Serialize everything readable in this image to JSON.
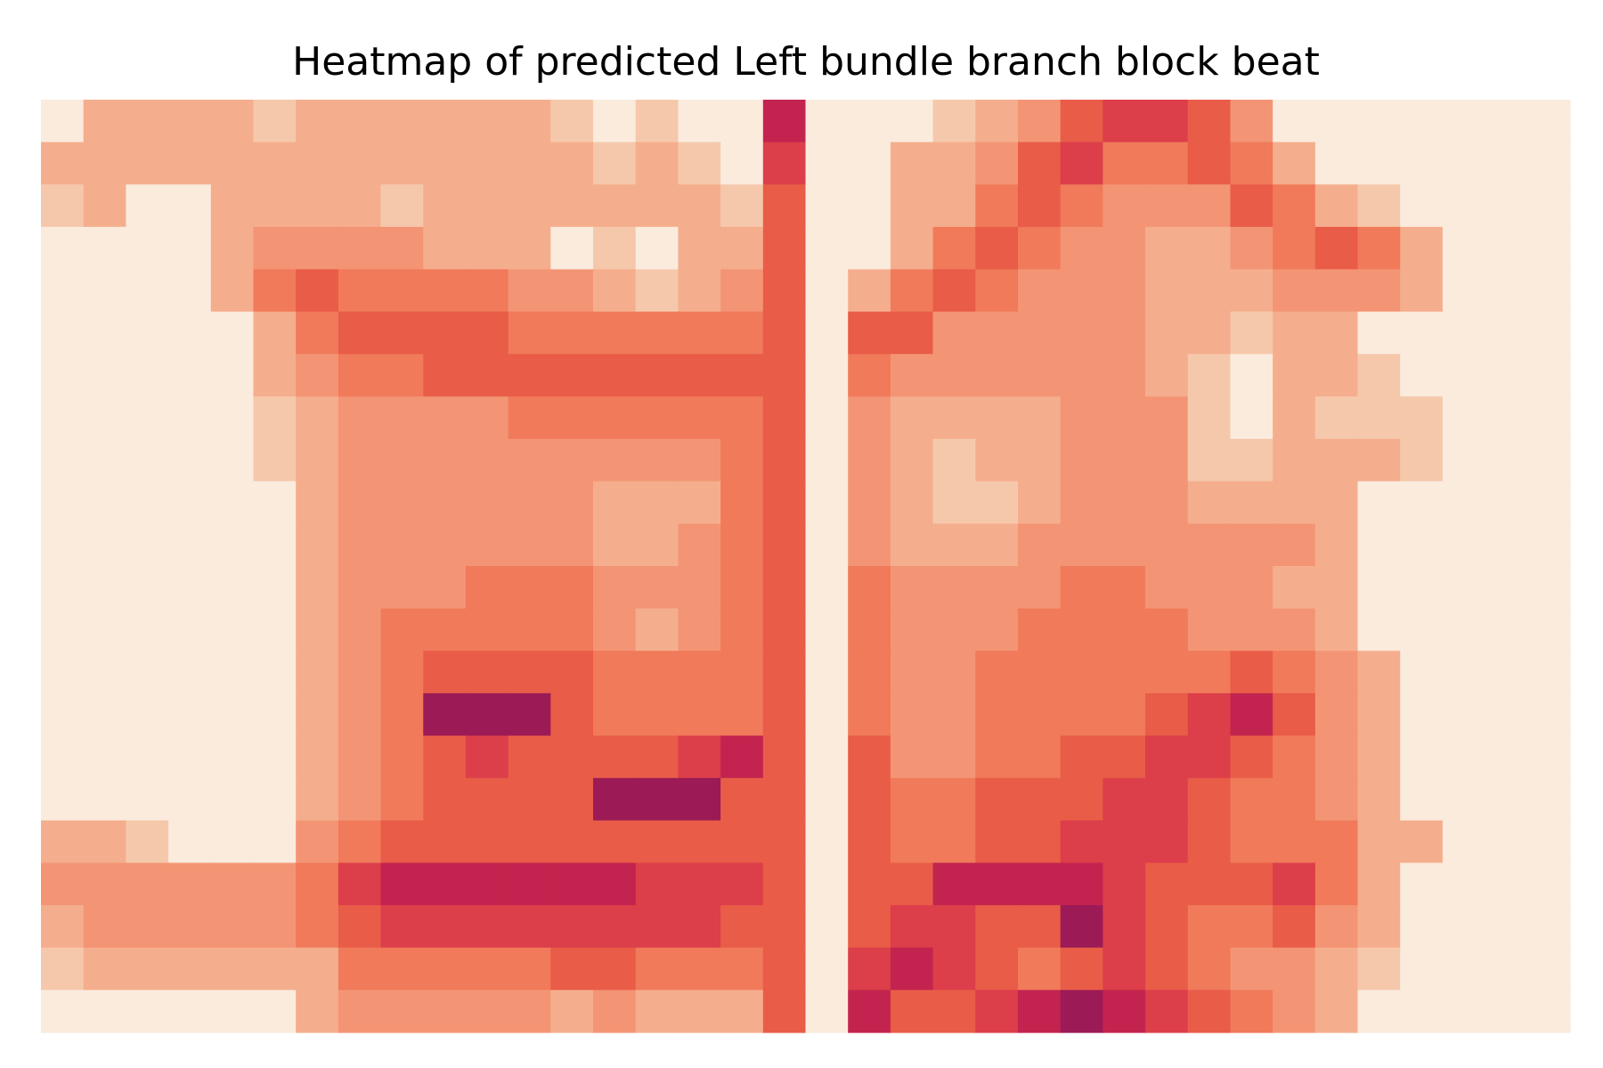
{
  "chart_data": {
    "type": "heatmap",
    "title": "Heatmap of predicted Left bundle branch block beat",
    "vlim": [
      0,
      10
    ],
    "colorscale": [
      "#faebdd",
      "#f6c8ab",
      "#f5ae8d",
      "#f39575",
      "#f07a5a",
      "#e95c48",
      "#dc3e4a",
      "#c3244f",
      "#9c1a56",
      "#5c1a4f",
      "#03051a"
    ],
    "values": [
      [
        0,
        2,
        2,
        2,
        2,
        1,
        2,
        2,
        2,
        2,
        2,
        2,
        1,
        0,
        1,
        0,
        0,
        7,
        0,
        0,
        0,
        1,
        2,
        3,
        5,
        6,
        6,
        5,
        3,
        0,
        0,
        0,
        0,
        0,
        0,
        0
      ],
      [
        2,
        2,
        2,
        2,
        2,
        2,
        2,
        2,
        2,
        2,
        2,
        2,
        2,
        1,
        2,
        1,
        0,
        6,
        0,
        0,
        2,
        2,
        3,
        5,
        6,
        4,
        4,
        5,
        4,
        2,
        0,
        0,
        0,
        0,
        0,
        0
      ],
      [
        1,
        2,
        0,
        0,
        2,
        2,
        2,
        2,
        1,
        2,
        2,
        2,
        2,
        2,
        2,
        2,
        1,
        5,
        0,
        0,
        2,
        2,
        4,
        5,
        4,
        3,
        3,
        3,
        5,
        4,
        2,
        1,
        0,
        0,
        0,
        0
      ],
      [
        0,
        0,
        0,
        0,
        2,
        3,
        3,
        3,
        3,
        2,
        2,
        2,
        0,
        1,
        0,
        2,
        2,
        5,
        0,
        0,
        2,
        4,
        5,
        4,
        3,
        3,
        2,
        2,
        3,
        4,
        5,
        4,
        2,
        0,
        0,
        0
      ],
      [
        0,
        0,
        0,
        0,
        2,
        4,
        5,
        4,
        4,
        4,
        4,
        3,
        3,
        2,
        1,
        2,
        3,
        5,
        0,
        2,
        4,
        5,
        4,
        3,
        3,
        3,
        2,
        2,
        2,
        3,
        3,
        3,
        2,
        0,
        0,
        0
      ],
      [
        0,
        0,
        0,
        0,
        0,
        2,
        4,
        5,
        5,
        5,
        5,
        4,
        4,
        4,
        4,
        4,
        4,
        5,
        0,
        5,
        5,
        3,
        3,
        3,
        3,
        3,
        2,
        2,
        1,
        2,
        2,
        0,
        0,
        0,
        0,
        0
      ],
      [
        0,
        0,
        0,
        0,
        0,
        2,
        3,
        4,
        4,
        5,
        5,
        5,
        5,
        5,
        5,
        5,
        5,
        5,
        0,
        4,
        3,
        3,
        3,
        3,
        3,
        3,
        2,
        1,
        0,
        2,
        2,
        1,
        0,
        0,
        0,
        0
      ],
      [
        0,
        0,
        0,
        0,
        0,
        1,
        2,
        3,
        3,
        3,
        3,
        4,
        4,
        4,
        4,
        4,
        4,
        5,
        0,
        3,
        2,
        2,
        2,
        2,
        3,
        3,
        3,
        1,
        0,
        2,
        1,
        1,
        1,
        0,
        0,
        0
      ],
      [
        0,
        0,
        0,
        0,
        0,
        1,
        2,
        3,
        3,
        3,
        3,
        3,
        3,
        3,
        3,
        3,
        4,
        5,
        0,
        3,
        2,
        1,
        2,
        2,
        3,
        3,
        3,
        1,
        1,
        2,
        2,
        2,
        1,
        0,
        0,
        0
      ],
      [
        0,
        0,
        0,
        0,
        0,
        0,
        2,
        3,
        3,
        3,
        3,
        3,
        3,
        2,
        2,
        2,
        4,
        5,
        0,
        3,
        2,
        1,
        1,
        2,
        3,
        3,
        3,
        2,
        2,
        2,
        2,
        0,
        0,
        0,
        0,
        0
      ],
      [
        0,
        0,
        0,
        0,
        0,
        0,
        2,
        3,
        3,
        3,
        3,
        3,
        3,
        2,
        2,
        3,
        4,
        5,
        0,
        3,
        2,
        2,
        2,
        3,
        3,
        3,
        3,
        3,
        3,
        3,
        2,
        0,
        0,
        0,
        0,
        0
      ],
      [
        0,
        0,
        0,
        0,
        0,
        0,
        2,
        3,
        3,
        3,
        4,
        4,
        4,
        3,
        3,
        3,
        4,
        5,
        0,
        4,
        3,
        3,
        3,
        3,
        4,
        4,
        3,
        3,
        3,
        2,
        2,
        0,
        0,
        0,
        0,
        0
      ],
      [
        0,
        0,
        0,
        0,
        0,
        0,
        2,
        3,
        4,
        4,
        4,
        4,
        4,
        3,
        2,
        3,
        4,
        5,
        0,
        4,
        3,
        3,
        3,
        4,
        4,
        4,
        4,
        3,
        3,
        3,
        2,
        0,
        0,
        0,
        0,
        0
      ],
      [
        0,
        0,
        0,
        0,
        0,
        0,
        2,
        3,
        4,
        5,
        5,
        5,
        5,
        4,
        4,
        4,
        4,
        5,
        0,
        4,
        3,
        3,
        4,
        4,
        4,
        4,
        4,
        4,
        5,
        4,
        3,
        2,
        0,
        0,
        0,
        0
      ],
      [
        0,
        0,
        0,
        0,
        0,
        0,
        2,
        3,
        4,
        8,
        8,
        8,
        5,
        4,
        4,
        4,
        4,
        5,
        0,
        4,
        3,
        3,
        4,
        4,
        4,
        4,
        5,
        6,
        7,
        5,
        3,
        2,
        0,
        0,
        0,
        0
      ],
      [
        0,
        0,
        0,
        0,
        0,
        0,
        2,
        3,
        4,
        5,
        6,
        5,
        5,
        5,
        5,
        6,
        7,
        5,
        0,
        5,
        3,
        3,
        4,
        4,
        5,
        5,
        6,
        6,
        5,
        4,
        3,
        2,
        0,
        0,
        0,
        0
      ],
      [
        0,
        0,
        0,
        0,
        0,
        0,
        2,
        3,
        4,
        5,
        5,
        5,
        5,
        8,
        8,
        8,
        5,
        5,
        0,
        5,
        4,
        4,
        5,
        5,
        5,
        6,
        6,
        5,
        4,
        4,
        3,
        2,
        0,
        0,
        0,
        0
      ],
      [
        2,
        2,
        1,
        0,
        0,
        0,
        3,
        4,
        5,
        5,
        5,
        5,
        5,
        5,
        5,
        5,
        5,
        5,
        0,
        5,
        4,
        4,
        5,
        5,
        6,
        6,
        6,
        5,
        4,
        4,
        4,
        2,
        2,
        0,
        0,
        0
      ],
      [
        3,
        3,
        3,
        3,
        3,
        3,
        4,
        6,
        7,
        7,
        7,
        7,
        7,
        7,
        6,
        6,
        6,
        5,
        0,
        5,
        5,
        7,
        7,
        7,
        7,
        6,
        5,
        5,
        5,
        6,
        4,
        2,
        0,
        0,
        0,
        0
      ],
      [
        2,
        3,
        3,
        3,
        3,
        3,
        4,
        5,
        6,
        6,
        6,
        6,
        6,
        6,
        6,
        6,
        5,
        5,
        0,
        5,
        6,
        6,
        5,
        5,
        8,
        6,
        5,
        4,
        4,
        5,
        3,
        2,
        0,
        0,
        0,
        0
      ],
      [
        1,
        2,
        2,
        2,
        2,
        2,
        2,
        4,
        4,
        4,
        4,
        4,
        5,
        5,
        4,
        4,
        4,
        5,
        0,
        6,
        7,
        6,
        5,
        4,
        5,
        6,
        5,
        4,
        3,
        3,
        2,
        1,
        0,
        0,
        0,
        0
      ],
      [
        0,
        0,
        0,
        0,
        0,
        0,
        2,
        3,
        3,
        3,
        3,
        3,
        2,
        3,
        2,
        2,
        2,
        5,
        0,
        7,
        5,
        5,
        6,
        7,
        8,
        7,
        6,
        5,
        4,
        3,
        2,
        0,
        0,
        0,
        0,
        0
      ]
    ]
  }
}
